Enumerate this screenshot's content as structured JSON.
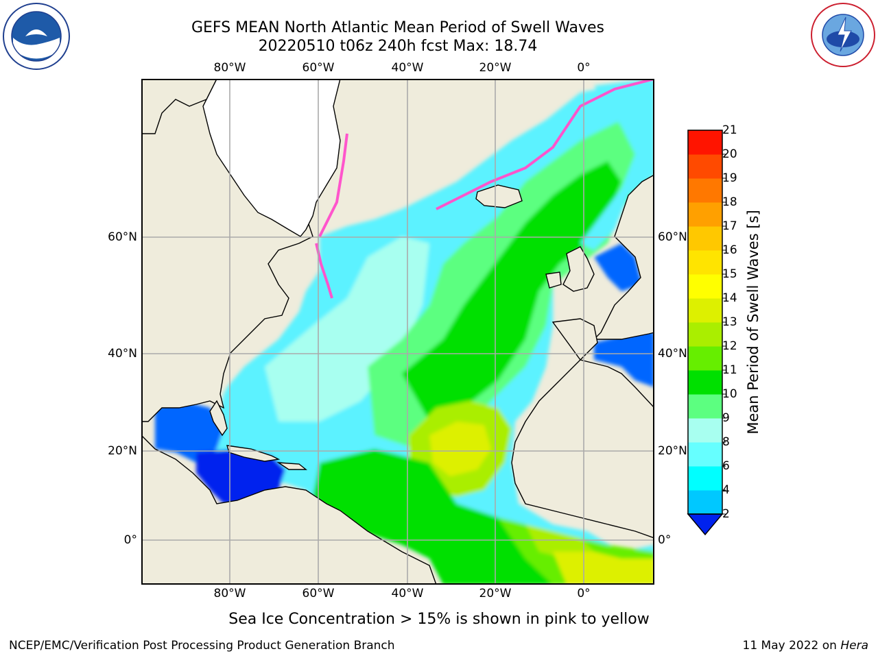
{
  "header": {
    "title_line1": "GEFS MEAN North Atlantic Mean Period of Swell Waves",
    "title_line2": "20220510 t06z 240h fcst   Max: 18.74"
  },
  "map": {
    "lon_labels": [
      "80°W",
      "60°W",
      "40°W",
      "20°W",
      "0°"
    ],
    "lat_labels": [
      "60°N",
      "40°N",
      "20°N",
      "0°"
    ],
    "extent": {
      "lon_min": -98,
      "lon_max": 15,
      "lat_min": -8,
      "lat_max": 80
    }
  },
  "colorbar": {
    "label": "Mean Period of Swell Waves [s]",
    "ticks": [
      "2",
      "4",
      "6",
      "8",
      "9",
      "10",
      "11",
      "12",
      "13",
      "14",
      "15",
      "16",
      "17",
      "18",
      "19",
      "20",
      "21"
    ],
    "colors": [
      "#0066ff",
      "#00c8ff",
      "#00ffff",
      "#66ffff",
      "#a8fff0",
      "#5cff80",
      "#00e000",
      "#66ee00",
      "#aaee00",
      "#ddf000",
      "#ffff00",
      "#ffe400",
      "#ffc800",
      "#ffa000",
      "#ff7800",
      "#ff4a00",
      "#ff1400"
    ],
    "extend_color": "#0022ee"
  },
  "footer": {
    "caption": "Sea Ice Concentration > 15% is shown in pink to yellow",
    "credit": "NCEP/EMC/Verification Post Processing Product Generation Branch",
    "date": "11 May 2022 on ",
    "machine": "Hera"
  },
  "logos": {
    "left": "noaa-logo",
    "right": "nws-logo"
  }
}
